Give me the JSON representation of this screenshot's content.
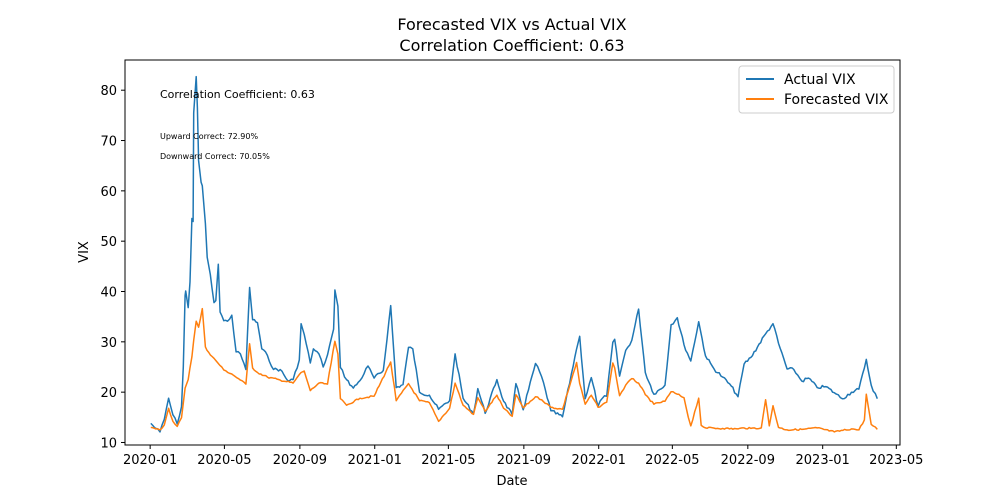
{
  "chart_data": {
    "type": "line",
    "title": "Forecasted VIX vs Actual VIX",
    "subtitle": "Correlation Coefficient: 0.63",
    "xlabel": "Date",
    "ylabel": "VIX",
    "xlim": [
      "2019-11-21",
      "2023-05-07"
    ],
    "ylim": [
      9.5,
      86
    ],
    "x_ticks": [
      "2020-01",
      "2020-05",
      "2020-09",
      "2021-01",
      "2021-05",
      "2021-09",
      "2022-01",
      "2022-05",
      "2022-09",
      "2023-01",
      "2023-05"
    ],
    "y_ticks": [
      10,
      20,
      30,
      40,
      50,
      60,
      70,
      80
    ],
    "legend": {
      "placement": "top-right",
      "entries": [
        "Actual VIX",
        "Forecasted VIX"
      ]
    },
    "annotations": {
      "correlation": "Correlation Coefficient: 0.63",
      "upward": "Upward Correct: 72.90%",
      "downward": "Downward Correct: 70.05%"
    },
    "grid": false,
    "series": [
      {
        "name": "Actual VIX",
        "color": "#1f77b4",
        "points": [
          [
            "2020-01-02",
            13.8
          ],
          [
            "2020-01-10",
            12.8
          ],
          [
            "2020-01-17",
            12.1
          ],
          [
            "2020-01-24",
            14.6
          ],
          [
            "2020-01-31",
            18.8
          ],
          [
            "2020-02-07",
            15.5
          ],
          [
            "2020-02-14",
            13.7
          ],
          [
            "2020-02-21",
            17.1
          ],
          [
            "2020-02-24",
            25.0
          ],
          [
            "2020-02-27",
            39.2
          ],
          [
            "2020-02-28",
            40.1
          ],
          [
            "2020-03-03",
            36.8
          ],
          [
            "2020-03-06",
            41.9
          ],
          [
            "2020-03-09",
            54.5
          ],
          [
            "2020-03-11",
            53.9
          ],
          [
            "2020-03-12",
            75.5
          ],
          [
            "2020-03-16",
            82.7
          ],
          [
            "2020-03-18",
            76.5
          ],
          [
            "2020-03-20",
            66.0
          ],
          [
            "2020-03-24",
            61.7
          ],
          [
            "2020-03-26",
            61.0
          ],
          [
            "2020-03-31",
            53.5
          ],
          [
            "2020-04-03",
            46.8
          ],
          [
            "2020-04-08",
            43.4
          ],
          [
            "2020-04-14",
            37.8
          ],
          [
            "2020-04-17",
            38.2
          ],
          [
            "2020-04-21",
            45.4
          ],
          [
            "2020-04-24",
            35.9
          ],
          [
            "2020-04-30",
            34.2
          ],
          [
            "2020-05-06",
            34.1
          ],
          [
            "2020-05-13",
            35.3
          ],
          [
            "2020-05-20",
            27.99
          ],
          [
            "2020-05-27",
            27.6
          ],
          [
            "2020-06-05",
            24.5
          ],
          [
            "2020-06-11",
            40.8
          ],
          [
            "2020-06-16",
            34.4
          ],
          [
            "2020-06-24",
            33.8
          ],
          [
            "2020-07-01",
            28.6
          ],
          [
            "2020-07-10",
            27.3
          ],
          [
            "2020-07-20",
            24.5
          ],
          [
            "2020-07-31",
            24.5
          ],
          [
            "2020-08-12",
            22.3
          ],
          [
            "2020-08-21",
            22.5
          ],
          [
            "2020-08-31",
            26.4
          ],
          [
            "2020-09-03",
            33.6
          ],
          [
            "2020-09-08",
            31.5
          ],
          [
            "2020-09-18",
            25.8
          ],
          [
            "2020-09-23",
            28.6
          ],
          [
            "2020-10-02",
            27.6
          ],
          [
            "2020-10-09",
            25.0
          ],
          [
            "2020-10-16",
            27.4
          ],
          [
            "2020-10-26",
            32.5
          ],
          [
            "2020-10-28",
            40.3
          ],
          [
            "2020-11-02",
            37.1
          ],
          [
            "2020-11-06",
            24.9
          ],
          [
            "2020-11-16",
            22.5
          ],
          [
            "2020-11-27",
            20.8
          ],
          [
            "2020-12-08",
            22.3
          ],
          [
            "2020-12-21",
            25.2
          ],
          [
            "2020-12-31",
            22.8
          ],
          [
            "2021-01-15",
            24.3
          ],
          [
            "2021-01-27",
            37.2
          ],
          [
            "2021-02-05",
            20.9
          ],
          [
            "2021-02-16",
            21.5
          ],
          [
            "2021-02-25",
            28.9
          ],
          [
            "2021-03-04",
            28.6
          ],
          [
            "2021-03-15",
            20.0
          ],
          [
            "2021-03-31",
            19.4
          ],
          [
            "2021-04-15",
            16.6
          ],
          [
            "2021-05-03",
            18.3
          ],
          [
            "2021-05-12",
            27.6
          ],
          [
            "2021-05-25",
            18.8
          ],
          [
            "2021-06-11",
            15.7
          ],
          [
            "2021-06-18",
            20.7
          ],
          [
            "2021-06-30",
            15.8
          ],
          [
            "2021-07-19",
            22.5
          ],
          [
            "2021-07-30",
            18.2
          ],
          [
            "2021-08-13",
            15.5
          ],
          [
            "2021-08-19",
            21.7
          ],
          [
            "2021-08-31",
            16.5
          ],
          [
            "2021-09-20",
            25.7
          ],
          [
            "2021-09-30",
            23.1
          ],
          [
            "2021-10-15",
            16.3
          ],
          [
            "2021-11-03",
            15.1
          ],
          [
            "2021-11-26",
            28.6
          ],
          [
            "2021-12-01",
            31.1
          ],
          [
            "2021-12-10",
            18.7
          ],
          [
            "2021-12-20",
            22.9
          ],
          [
            "2021-12-31",
            17.2
          ],
          [
            "2022-01-07",
            18.8
          ],
          [
            "2022-01-14",
            19.2
          ],
          [
            "2022-01-24",
            29.9
          ],
          [
            "2022-01-27",
            30.5
          ],
          [
            "2022-02-04",
            23.2
          ],
          [
            "2022-02-14",
            28.3
          ],
          [
            "2022-02-24",
            30.3
          ],
          [
            "2022-03-07",
            36.5
          ],
          [
            "2022-03-18",
            23.9
          ],
          [
            "2022-04-01",
            19.6
          ],
          [
            "2022-04-19",
            21.4
          ],
          [
            "2022-04-29",
            33.4
          ],
          [
            "2022-05-09",
            34.8
          ],
          [
            "2022-05-20",
            29.4
          ],
          [
            "2022-05-31",
            26.2
          ],
          [
            "2022-06-13",
            34.0
          ],
          [
            "2022-06-24",
            27.2
          ],
          [
            "2022-07-08",
            24.6
          ],
          [
            "2022-07-22",
            23.0
          ],
          [
            "2022-08-05",
            21.2
          ],
          [
            "2022-08-16",
            19.1
          ],
          [
            "2022-08-26",
            25.6
          ],
          [
            "2022-09-06",
            26.9
          ],
          [
            "2022-09-30",
            31.6
          ],
          [
            "2022-10-12",
            33.6
          ],
          [
            "2022-10-21",
            29.7
          ],
          [
            "2022-11-04",
            24.6
          ],
          [
            "2022-11-15",
            24.5
          ],
          [
            "2022-11-28",
            22.2
          ],
          [
            "2022-12-09",
            22.8
          ],
          [
            "2022-12-23",
            20.9
          ],
          [
            "2023-01-06",
            21.1
          ],
          [
            "2023-01-20",
            19.9
          ],
          [
            "2023-02-02",
            18.7
          ],
          [
            "2023-02-17",
            20.0
          ],
          [
            "2023-03-01",
            20.6
          ],
          [
            "2023-03-10",
            24.8
          ],
          [
            "2023-03-13",
            26.5
          ],
          [
            "2023-03-21",
            21.4
          ],
          [
            "2023-03-31",
            18.7
          ]
        ]
      },
      {
        "name": "Forecasted VIX",
        "color": "#ff7f0e",
        "points": [
          [
            "2020-01-02",
            13.0
          ],
          [
            "2020-01-10",
            12.7
          ],
          [
            "2020-01-17",
            12.5
          ],
          [
            "2020-01-24",
            13.5
          ],
          [
            "2020-01-31",
            16.8
          ],
          [
            "2020-02-07",
            14.2
          ],
          [
            "2020-02-14",
            13.2
          ],
          [
            "2020-02-21",
            14.9
          ],
          [
            "2020-02-27",
            20.8
          ],
          [
            "2020-03-03",
            22.5
          ],
          [
            "2020-03-09",
            27.0
          ],
          [
            "2020-03-12",
            30.3
          ],
          [
            "2020-03-16",
            34.1
          ],
          [
            "2020-03-20",
            32.9
          ],
          [
            "2020-03-26",
            36.6
          ],
          [
            "2020-03-31",
            29.0
          ],
          [
            "2020-04-08",
            27.4
          ],
          [
            "2020-04-17",
            26.3
          ],
          [
            "2020-04-30",
            24.4
          ],
          [
            "2020-05-13",
            23.6
          ],
          [
            "2020-05-27",
            22.4
          ],
          [
            "2020-06-05",
            21.6
          ],
          [
            "2020-06-11",
            29.6
          ],
          [
            "2020-06-16",
            24.8
          ],
          [
            "2020-06-24",
            23.9
          ],
          [
            "2020-07-10",
            23.0
          ],
          [
            "2020-07-31",
            22.4
          ],
          [
            "2020-08-21",
            21.8
          ],
          [
            "2020-09-03",
            23.9
          ],
          [
            "2020-09-08",
            24.2
          ],
          [
            "2020-09-18",
            20.3
          ],
          [
            "2020-10-02",
            21.8
          ],
          [
            "2020-10-16",
            21.6
          ],
          [
            "2020-10-28",
            30.1
          ],
          [
            "2020-11-02",
            27.6
          ],
          [
            "2020-11-06",
            18.7
          ],
          [
            "2020-11-16",
            17.4
          ],
          [
            "2020-12-08",
            18.8
          ],
          [
            "2020-12-31",
            19.2
          ],
          [
            "2021-01-27",
            26.0
          ],
          [
            "2021-02-05",
            18.3
          ],
          [
            "2021-02-25",
            21.7
          ],
          [
            "2021-03-15",
            18.3
          ],
          [
            "2021-03-31",
            17.9
          ],
          [
            "2021-04-15",
            14.2
          ],
          [
            "2021-05-03",
            16.8
          ],
          [
            "2021-05-12",
            21.8
          ],
          [
            "2021-05-25",
            17.4
          ],
          [
            "2021-06-11",
            15.6
          ],
          [
            "2021-06-18",
            18.9
          ],
          [
            "2021-06-30",
            16.2
          ],
          [
            "2021-07-19",
            19.4
          ],
          [
            "2021-07-30",
            16.8
          ],
          [
            "2021-08-13",
            15.2
          ],
          [
            "2021-08-19",
            19.5
          ],
          [
            "2021-08-31",
            16.9
          ],
          [
            "2021-09-20",
            19.1
          ],
          [
            "2021-09-30",
            18.5
          ],
          [
            "2021-10-15",
            17.0
          ],
          [
            "2021-11-03",
            16.6
          ],
          [
            "2021-11-26",
            25.9
          ],
          [
            "2021-12-01",
            21.7
          ],
          [
            "2021-12-10",
            17.6
          ],
          [
            "2021-12-20",
            19.4
          ],
          [
            "2021-12-31",
            17.0
          ],
          [
            "2022-01-14",
            18.0
          ],
          [
            "2022-01-24",
            25.8
          ],
          [
            "2022-01-27",
            24.8
          ],
          [
            "2022-02-04",
            19.3
          ],
          [
            "2022-02-14",
            21.4
          ],
          [
            "2022-02-24",
            22.7
          ],
          [
            "2022-03-07",
            21.8
          ],
          [
            "2022-03-18",
            19.5
          ],
          [
            "2022-04-01",
            17.6
          ],
          [
            "2022-04-19",
            18.2
          ],
          [
            "2022-04-29",
            20.1
          ],
          [
            "2022-05-09",
            19.6
          ],
          [
            "2022-05-20",
            18.9
          ],
          [
            "2022-05-27",
            15.0
          ],
          [
            "2022-05-31",
            13.3
          ],
          [
            "2022-06-13",
            18.8
          ],
          [
            "2022-06-17",
            13.4
          ],
          [
            "2022-06-24",
            12.9
          ],
          [
            "2022-07-22",
            12.8
          ],
          [
            "2022-08-16",
            12.7
          ],
          [
            "2022-08-26",
            12.9
          ],
          [
            "2022-09-06",
            12.8
          ],
          [
            "2022-09-23",
            12.9
          ],
          [
            "2022-09-30",
            18.5
          ],
          [
            "2022-10-06",
            13.3
          ],
          [
            "2022-10-12",
            17.3
          ],
          [
            "2022-10-21",
            13.0
          ],
          [
            "2022-11-04",
            12.5
          ],
          [
            "2022-11-28",
            12.6
          ],
          [
            "2022-12-23",
            12.9
          ],
          [
            "2023-01-20",
            12.1
          ],
          [
            "2023-02-17",
            12.7
          ],
          [
            "2023-03-01",
            12.5
          ],
          [
            "2023-03-10",
            14.5
          ],
          [
            "2023-03-13",
            19.6
          ],
          [
            "2023-03-21",
            13.6
          ],
          [
            "2023-03-31",
            12.6
          ]
        ]
      }
    ]
  }
}
